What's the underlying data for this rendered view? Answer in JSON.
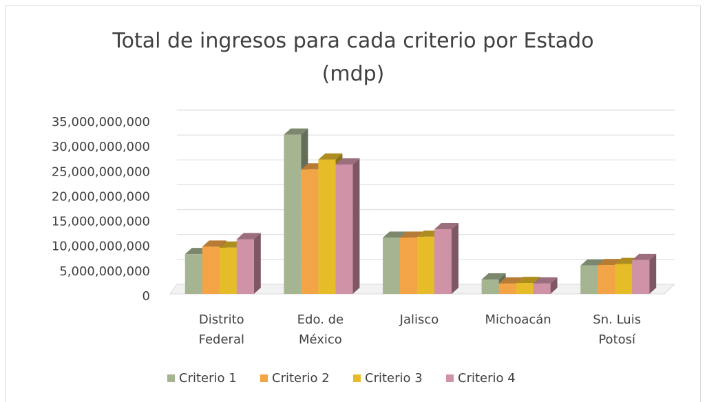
{
  "chart_data": {
    "type": "bar3d",
    "title": "Total de ingresos para cada criterio por Estado (mdp)",
    "categories": [
      [
        "Distrito",
        "Federal"
      ],
      [
        "Edo. de",
        "México"
      ],
      [
        "Jalisco"
      ],
      [
        "Michoacán"
      ],
      [
        "Sn. Luis",
        "Potosí"
      ]
    ],
    "series": [
      {
        "name": "Criterio 1",
        "color": "#a5b592",
        "values": [
          8000000000,
          32000000000,
          11300000000,
          2900000000,
          5700000000
        ]
      },
      {
        "name": "Criterio 2",
        "color": "#f3a447",
        "values": [
          9500000000,
          25000000000,
          11300000000,
          2100000000,
          5800000000
        ]
      },
      {
        "name": "Criterio 3",
        "color": "#e7bc29",
        "values": [
          9300000000,
          27000000000,
          11500000000,
          2200000000,
          6000000000
        ]
      },
      {
        "name": "Criterio 4",
        "color": "#d092a7",
        "values": [
          11000000000,
          26000000000,
          13000000000,
          2100000000,
          6800000000
        ]
      }
    ],
    "ylim": [
      0,
      35000000000
    ],
    "yticks": [
      0,
      {
        "value": 5000000000,
        "label": "5,000,000,000"
      },
      {
        "value": 10000000000,
        "label": "10,000,000,000"
      },
      {
        "value": 15000000000,
        "label": "15,000,000,000"
      },
      {
        "value": 20000000000,
        "label": "20,000,000,000"
      },
      {
        "value": 25000000000,
        "label": "25,000,000,000"
      },
      {
        "value": 30000000000,
        "label": "30,000,000,000"
      },
      {
        "value": 35000000000,
        "label": "35,000,000,000"
      }
    ],
    "grid": true,
    "legend": "bottom"
  }
}
